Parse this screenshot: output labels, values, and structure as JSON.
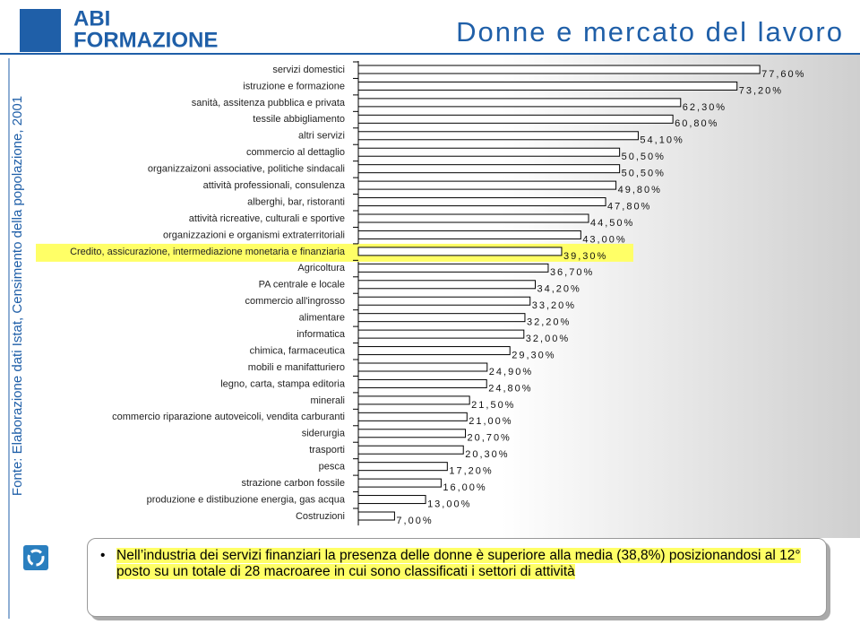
{
  "header": {
    "logo_top": "ABI",
    "logo_bottom": "FORMAZIONE",
    "title": "Donne e mercato del lavoro"
  },
  "source": "Fonte: Elaborazione dati Istat, Censimento della popolazione, 2001",
  "note": "Nell’industria dei servizi finanziari la presenza delle donne è superiore alla media (38,8%) posizionandosi al 12° posto su un totale di 28 macroaree in cui sono classificati i settori di attività",
  "chart_data": {
    "type": "hbar",
    "color": "#ffffff",
    "highlight_color": "#ffff66",
    "highlight_index": 11,
    "xlim": [
      0,
      80
    ],
    "categories": [
      "servizi domestici",
      "istruzione e formazione",
      "sanità, assitenza pubblica e privata",
      "tessile abbigliamento",
      "altri servizi",
      "commercio al dettaglio",
      "organizzaizoni associative, politiche sindacali",
      "attività professionali, consulenza",
      "alberghi, bar, ristoranti",
      "attività ricreative, culturali e sportive",
      "organizzazioni e organismi extraterritoriali",
      "Credito, assicurazione, intermediazione monetaria e finanziaria",
      "Agricoltura",
      "PA centrale e locale",
      "commercio all'ingrosso",
      "alimentare",
      "informatica",
      "chimica, farmaceutica",
      "mobili e manifatturiero",
      "legno, carta, stampa editoria",
      "minerali",
      "commercio riparazione autoveicoli, vendita carburanti",
      "siderurgia",
      "trasporti",
      "pesca",
      "strazione carbon fossile",
      "produzione e distibuzione energia, gas acqua",
      "Costruzioni"
    ],
    "values": [
      77.6,
      73.2,
      62.3,
      60.8,
      54.1,
      50.5,
      50.5,
      49.8,
      47.8,
      44.5,
      43.0,
      39.3,
      36.7,
      34.2,
      33.2,
      32.2,
      32.0,
      29.3,
      24.9,
      24.8,
      21.5,
      21.0,
      20.7,
      20.3,
      17.2,
      16.0,
      13.0,
      7.0
    ],
    "value_labels": [
      "77,60%",
      "73,20%",
      "62,30%",
      "60,80%",
      "54,10%",
      "50,50%",
      "50,50%",
      "49,80%",
      "47,80%",
      "44,50%",
      "43,00%",
      "39,30%",
      "36,70%",
      "34,20%",
      "33,20%",
      "32,20%",
      "32,00%",
      "29,30%",
      "24,90%",
      "24,80%",
      "21,50%",
      "21,00%",
      "20,70%",
      "20,30%",
      "17,20%",
      "16,00%",
      "13,00%",
      "7,00%"
    ]
  }
}
